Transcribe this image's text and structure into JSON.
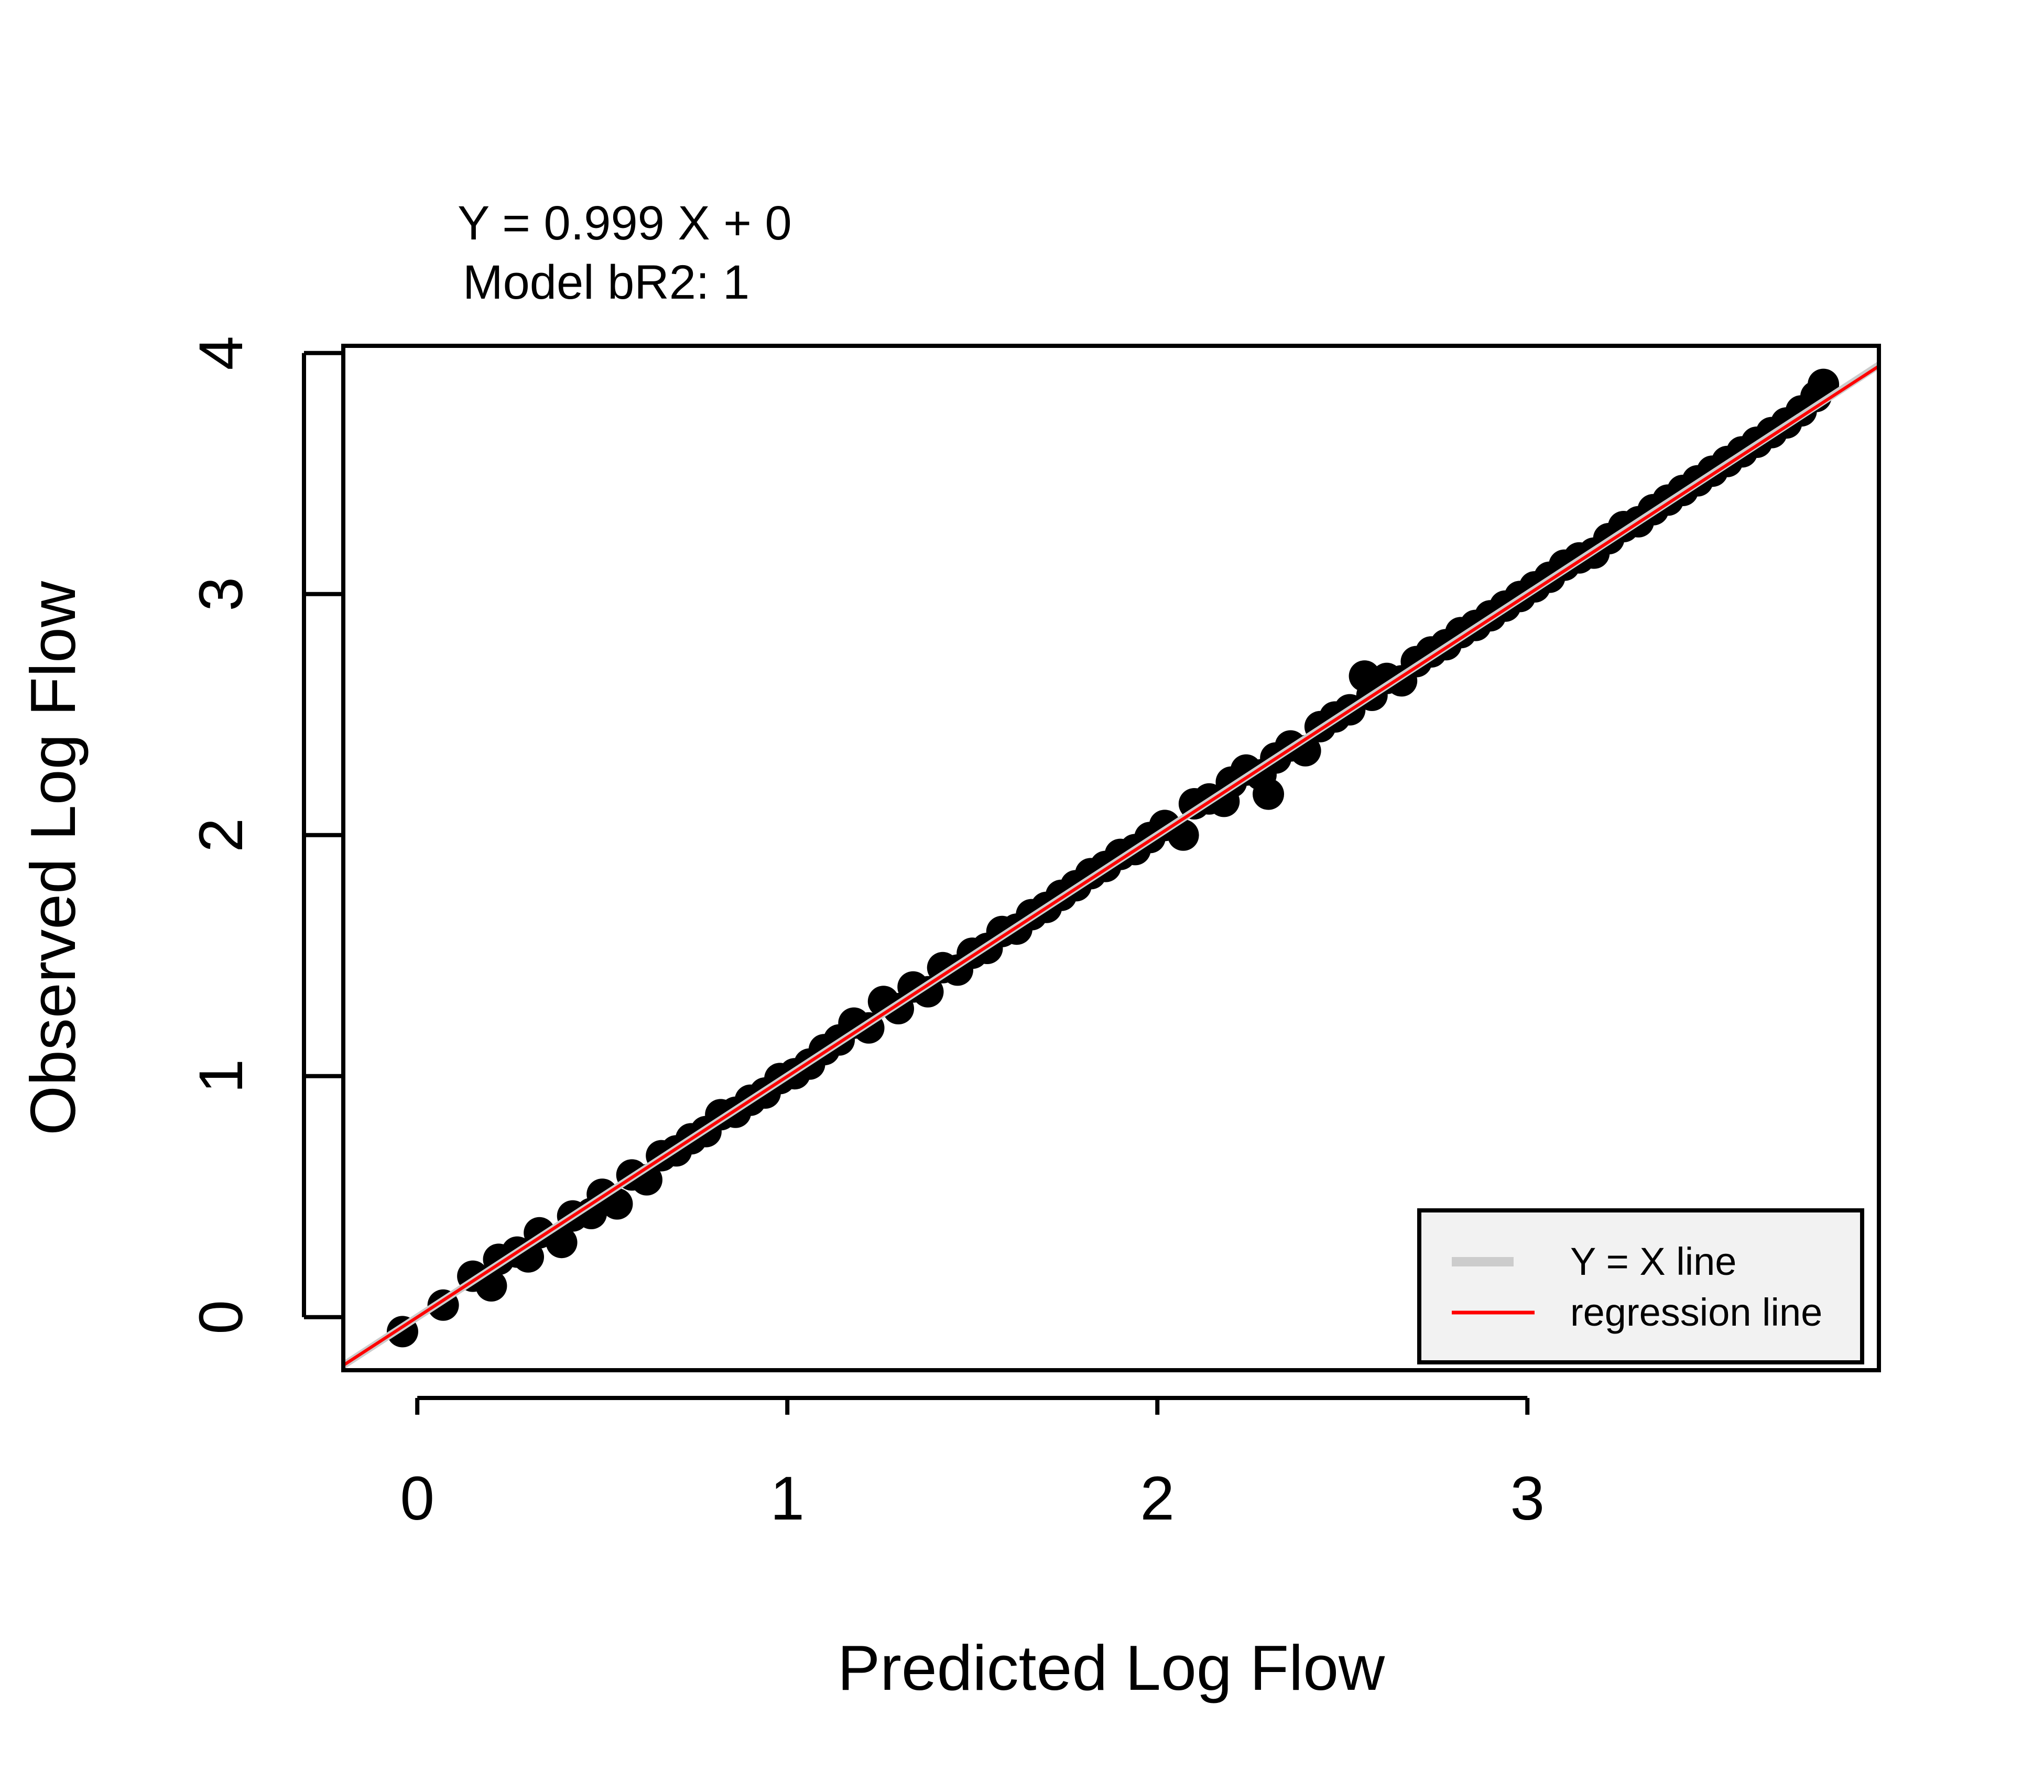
{
  "chart_data": {
    "type": "scatter",
    "annotation": {
      "equation": "Y = 0.999 X + 0",
      "fit_stat": "Model bR2: 1"
    },
    "xlabel": "Predicted Log Flow",
    "ylabel": "Observed Log Flow",
    "xlim": [
      -0.2,
      3.95
    ],
    "ylim": [
      -0.22,
      4.03
    ],
    "x_ticks": [
      0,
      1,
      2,
      3
    ],
    "x_tick_labels": [
      "0",
      "1",
      "2",
      "3"
    ],
    "y_ticks": [
      0,
      1,
      2,
      3,
      4
    ],
    "y_tick_labels": [
      "0",
      "1",
      "2",
      "3",
      "4"
    ],
    "grid": false,
    "legend": {
      "placement": "bottom-right",
      "entries": [
        {
          "label": "Y = X line",
          "color": "#cccccc"
        },
        {
          "label": "regression line",
          "color": "#ff0000"
        }
      ]
    },
    "lines": [
      {
        "name": "Y = X line",
        "slope": 1,
        "intercept": 0,
        "color": "#cccccc"
      },
      {
        "name": "regression line",
        "slope": 0.999,
        "intercept": 0,
        "color": "#ff0000"
      }
    ],
    "point_color": "#000000",
    "points": [
      [
        -0.04,
        -0.06
      ],
      [
        0.07,
        0.05
      ],
      [
        0.15,
        0.17
      ],
      [
        0.2,
        0.13
      ],
      [
        0.22,
        0.24
      ],
      [
        0.27,
        0.27
      ],
      [
        0.3,
        0.25
      ],
      [
        0.33,
        0.35
      ],
      [
        0.39,
        0.31
      ],
      [
        0.42,
        0.42
      ],
      [
        0.47,
        0.43
      ],
      [
        0.5,
        0.51
      ],
      [
        0.54,
        0.47
      ],
      [
        0.58,
        0.59
      ],
      [
        0.62,
        0.57
      ],
      [
        0.66,
        0.67
      ],
      [
        0.7,
        0.69
      ],
      [
        0.74,
        0.74
      ],
      [
        0.78,
        0.77
      ],
      [
        0.82,
        0.84
      ],
      [
        0.86,
        0.85
      ],
      [
        0.9,
        0.9
      ],
      [
        0.94,
        0.93
      ],
      [
        0.98,
        0.99
      ],
      [
        1.02,
        1.01
      ],
      [
        1.06,
        1.05
      ],
      [
        1.1,
        1.11
      ],
      [
        1.14,
        1.15
      ],
      [
        1.18,
        1.22
      ],
      [
        1.22,
        1.2
      ],
      [
        1.26,
        1.31
      ],
      [
        1.3,
        1.28
      ],
      [
        1.34,
        1.37
      ],
      [
        1.38,
        1.35
      ],
      [
        1.42,
        1.45
      ],
      [
        1.46,
        1.44
      ],
      [
        1.5,
        1.51
      ],
      [
        1.54,
        1.53
      ],
      [
        1.58,
        1.6
      ],
      [
        1.62,
        1.61
      ],
      [
        1.66,
        1.67
      ],
      [
        1.7,
        1.7
      ],
      [
        1.74,
        1.75
      ],
      [
        1.78,
        1.79
      ],
      [
        1.82,
        1.84
      ],
      [
        1.86,
        1.87
      ],
      [
        1.9,
        1.92
      ],
      [
        1.94,
        1.94
      ],
      [
        1.98,
        1.99
      ],
      [
        2.02,
        2.04
      ],
      [
        2.07,
        2.0
      ],
      [
        2.1,
        2.13
      ],
      [
        2.14,
        2.15
      ],
      [
        2.18,
        2.14
      ],
      [
        2.2,
        2.22
      ],
      [
        2.24,
        2.27
      ],
      [
        2.28,
        2.25
      ],
      [
        2.3,
        2.17
      ],
      [
        2.32,
        2.32
      ],
      [
        2.36,
        2.37
      ],
      [
        2.4,
        2.35
      ],
      [
        2.44,
        2.45
      ],
      [
        2.48,
        2.49
      ],
      [
        2.52,
        2.52
      ],
      [
        2.56,
        2.66
      ],
      [
        2.58,
        2.58
      ],
      [
        2.62,
        2.65
      ],
      [
        2.66,
        2.64
      ],
      [
        2.7,
        2.72
      ],
      [
        2.74,
        2.76
      ],
      [
        2.78,
        2.79
      ],
      [
        2.82,
        2.84
      ],
      [
        2.86,
        2.87
      ],
      [
        2.9,
        2.91
      ],
      [
        2.94,
        2.95
      ],
      [
        2.98,
        2.99
      ],
      [
        3.02,
        3.03
      ],
      [
        3.06,
        3.07
      ],
      [
        3.1,
        3.12
      ],
      [
        3.14,
        3.15
      ],
      [
        3.18,
        3.17
      ],
      [
        3.22,
        3.23
      ],
      [
        3.26,
        3.28
      ],
      [
        3.3,
        3.3
      ],
      [
        3.34,
        3.35
      ],
      [
        3.38,
        3.39
      ],
      [
        3.42,
        3.43
      ],
      [
        3.46,
        3.47
      ],
      [
        3.5,
        3.51
      ],
      [
        3.54,
        3.55
      ],
      [
        3.58,
        3.59
      ],
      [
        3.62,
        3.63
      ],
      [
        3.66,
        3.67
      ],
      [
        3.7,
        3.71
      ],
      [
        3.74,
        3.76
      ],
      [
        3.78,
        3.82
      ],
      [
        3.8,
        3.87
      ]
    ]
  }
}
